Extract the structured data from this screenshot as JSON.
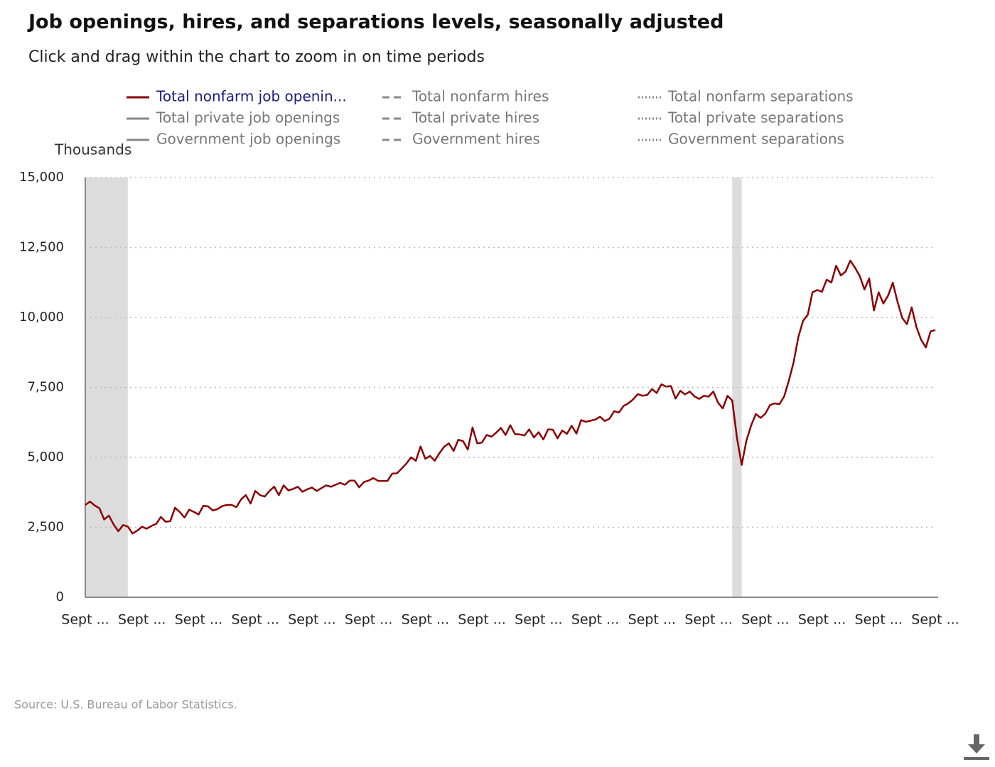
{
  "chart_data": {
    "type": "line",
    "title": "Job openings, hires, and separations levels, seasonally adjusted",
    "subtitle": "Click and drag within the chart to zoom in on time periods",
    "y_label": "Thousands",
    "source": "Source: U.S. Bureau of Labor Statistics.",
    "categories": [
      "Sept ...",
      null,
      null,
      null,
      null,
      null,
      null,
      null,
      null,
      null,
      null,
      null,
      "Sept ...",
      null,
      null,
      null,
      null,
      null,
      null,
      null,
      null,
      null,
      null,
      null,
      "Sept ...",
      null,
      null,
      null,
      null,
      null,
      null,
      null,
      null,
      null,
      null,
      null,
      "Sept ...",
      null,
      null,
      null,
      null,
      null,
      null,
      null,
      null,
      null,
      null,
      null,
      "Sept ...",
      null,
      null,
      null,
      null,
      null,
      null,
      null,
      null,
      null,
      null,
      null,
      "Sept ...",
      null,
      null,
      null,
      null,
      null,
      null,
      null,
      null,
      null,
      null,
      null,
      "Sept ...",
      null,
      null,
      null,
      null,
      null,
      null,
      null,
      null,
      null,
      null,
      null,
      "Sept ...",
      null,
      null,
      null,
      null,
      null,
      null,
      null,
      null,
      null,
      null,
      null,
      "Sept ...",
      null,
      null,
      null,
      null,
      null,
      null,
      null,
      null,
      null,
      null,
      null,
      "Sept ...",
      null,
      null,
      null,
      null,
      null,
      null,
      null,
      null,
      null,
      null,
      null,
      "Sept ...",
      null,
      null,
      null,
      null,
      null,
      null,
      null,
      null,
      null,
      null,
      null,
      "Sept ...",
      null,
      null,
      null,
      null,
      null,
      null,
      null,
      null,
      null,
      null,
      null,
      "Sept ...",
      null,
      null,
      null,
      null,
      null,
      null,
      null,
      null,
      null,
      null,
      null,
      "Sept ...",
      null,
      null,
      null,
      null,
      null,
      null,
      null,
      null,
      null,
      null,
      null,
      "Sept ...",
      null,
      null,
      null,
      null,
      null,
      null,
      null,
      null,
      null,
      null,
      null,
      "Sept ..."
    ],
    "series": [
      {
        "name": "Total nonfarm job openin...",
        "color": "#8b0000",
        "dash": "solid",
        "active": true,
        "values": [
          3300,
          3420,
          3280,
          3180,
          2780,
          2920,
          2600,
          2360,
          2580,
          2530,
          2280,
          2380,
          2520,
          2450,
          2550,
          2620,
          2870,
          2700,
          2720,
          3200,
          3050,
          2850,
          3130,
          3050,
          2960,
          3270,
          3250,
          3100,
          3150,
          3260,
          3300,
          3300,
          3220,
          3500,
          3650,
          3350,
          3800,
          3650,
          3600,
          3800,
          3950,
          3650,
          4000,
          3820,
          3870,
          3950,
          3770,
          3860,
          3920,
          3800,
          3900,
          4000,
          3950,
          4020,
          4090,
          4020,
          4170,
          4170,
          3930,
          4120,
          4170,
          4260,
          4160,
          4160,
          4160,
          4420,
          4430,
          4600,
          4780,
          5000,
          4880,
          5390,
          4950,
          5050,
          4880,
          5150,
          5380,
          5500,
          5230,
          5630,
          5580,
          5280,
          6070,
          5500,
          5530,
          5800,
          5740,
          5880,
          6050,
          5800,
          6150,
          5830,
          5820,
          5780,
          6000,
          5710,
          5900,
          5640,
          6000,
          5990,
          5680,
          5960,
          5840,
          6130,
          5850,
          6330,
          6270,
          6310,
          6350,
          6450,
          6300,
          6380,
          6650,
          6600,
          6840,
          6930,
          7070,
          7260,
          7200,
          7230,
          7440,
          7300,
          7610,
          7530,
          7550,
          7100,
          7380,
          7250,
          7350,
          7180,
          7090,
          7200,
          7170,
          7350,
          6950,
          6750,
          7200,
          7030,
          5700,
          4730,
          5600,
          6140,
          6550,
          6410,
          6560,
          6870,
          6930,
          6900,
          7180,
          7750,
          8400,
          9300,
          9880,
          10100,
          10900,
          10980,
          10920,
          11350,
          11250,
          11850,
          11500,
          11640,
          12030,
          11780,
          11480,
          11000,
          11400,
          10250,
          10900,
          10500,
          10780,
          11240,
          10560,
          9980,
          9760,
          10360,
          9660,
          9200,
          8930,
          9500,
          9550
        ]
      },
      {
        "name": "Total private job openings",
        "color": "#888888",
        "dash": "solid",
        "active": false
      },
      {
        "name": "Government job openings",
        "color": "#888888",
        "dash": "solid",
        "active": false
      },
      {
        "name": "Total nonfarm hires",
        "color": "#888888",
        "dash": "dashed",
        "active": false
      },
      {
        "name": "Total private hires",
        "color": "#888888",
        "dash": "dashed",
        "active": false
      },
      {
        "name": "Government hires",
        "color": "#888888",
        "dash": "dashed",
        "active": false
      },
      {
        "name": "Total nonfarm separations",
        "color": "#888888",
        "dash": "dotted",
        "active": false
      },
      {
        "name": "Total private separations",
        "color": "#888888",
        "dash": "dotted",
        "active": false
      },
      {
        "name": "Government separations",
        "color": "#888888",
        "dash": "dotted",
        "active": false
      }
    ],
    "shaded": [
      [
        0,
        9
      ],
      [
        137,
        139
      ]
    ],
    "ylim": [
      0,
      15000
    ],
    "yticks": [
      0,
      {
        "value": 2500,
        "label": "2,500"
      },
      {
        "value": 5000,
        "label": "5,000"
      },
      {
        "value": 7500,
        "label": "7,500"
      },
      {
        "value": 10000,
        "label": "10,000"
      },
      {
        "value": 12500,
        "label": "12,500"
      },
      {
        "value": 15000,
        "label": "15,000"
      }
    ],
    "grid": true
  }
}
